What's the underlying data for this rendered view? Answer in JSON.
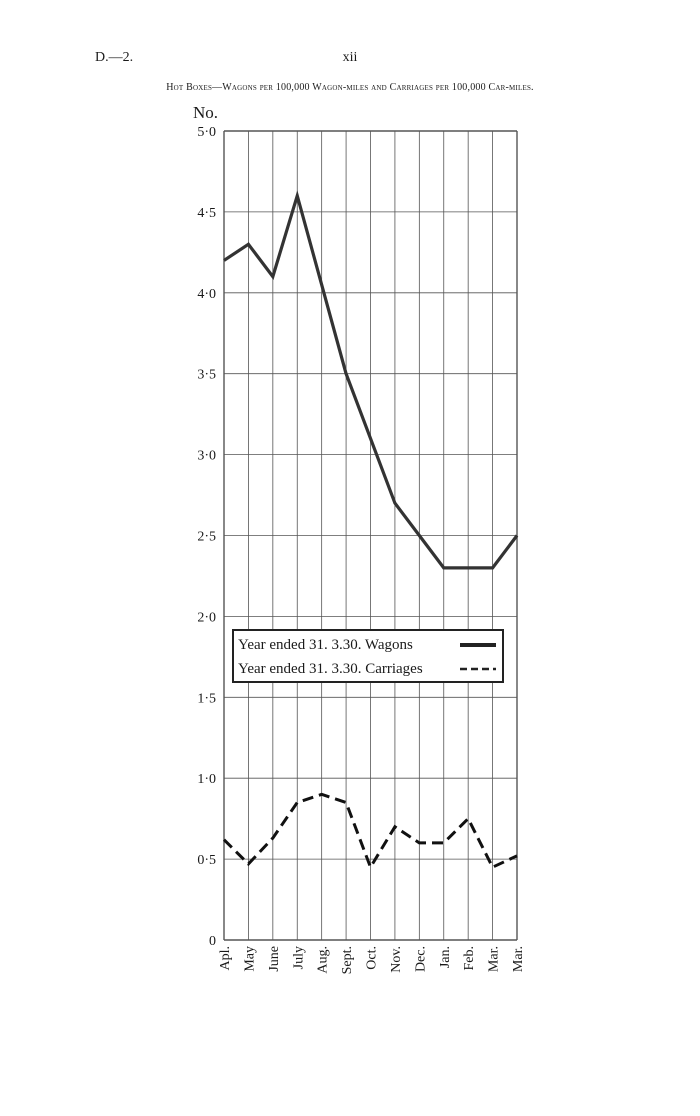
{
  "page": {
    "header_left": "D.—2.",
    "page_number": "xii",
    "title": "Hot Boxes—Wagons per 100,000 Wagon-miles and Carriages per 100,000 Car-miles."
  },
  "chart_data": {
    "type": "line",
    "ylabel": "No.",
    "ylim": [
      0,
      5
    ],
    "yticks": [
      {
        "value": 0,
        "label": "0"
      },
      {
        "value": 0.5,
        "label": "0·5"
      },
      {
        "value": 1.0,
        "label": "1·0"
      },
      {
        "value": 1.5,
        "label": "1·5"
      },
      {
        "value": 2.0,
        "label": "2·0"
      },
      {
        "value": 2.5,
        "label": "2·5"
      },
      {
        "value": 3.0,
        "label": "3·0"
      },
      {
        "value": 3.5,
        "label": "3·5"
      },
      {
        "value": 4.0,
        "label": "4·0"
      },
      {
        "value": 4.5,
        "label": "4·5"
      },
      {
        "value": 5.0,
        "label": "5·0"
      }
    ],
    "categories": [
      "Apl.",
      "May",
      "June",
      "July",
      "Aug.",
      "Sept.",
      "Oct.",
      "Nov.",
      "Dec.",
      "Jan.",
      "Feb.",
      "Mar.",
      "Mar."
    ],
    "grid": true,
    "series": [
      {
        "name": "Year ended 31. 3.30. Wagons",
        "style": "solid",
        "color": "#333333",
        "values": [
          4.2,
          4.3,
          4.1,
          4.6,
          4.05,
          3.5,
          3.1,
          2.7,
          2.5,
          2.3,
          2.3,
          2.3,
          2.5
        ]
      },
      {
        "name": "Year ended 31. 3.30. Carriages",
        "style": "dashed",
        "color": "#111111",
        "values": [
          0.62,
          0.47,
          0.63,
          0.85,
          0.9,
          0.85,
          0.45,
          0.7,
          0.6,
          0.6,
          0.75,
          0.45,
          0.52
        ]
      }
    ],
    "legend_position": "center-left"
  }
}
